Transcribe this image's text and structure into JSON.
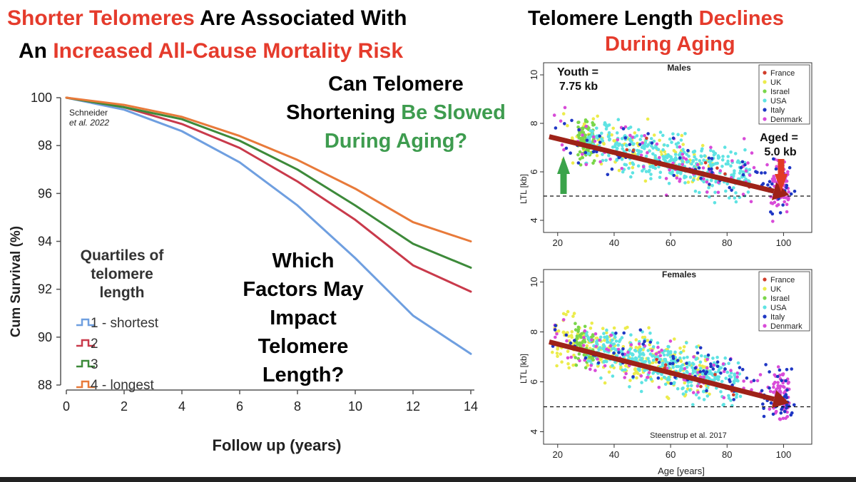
{
  "headline_left": {
    "part1": "Shorter Telomeres",
    "part2": " Are Associated With",
    "part3": "An ",
    "part4": "Increased All-Cause Mortality Risk"
  },
  "headline_right": {
    "part1": "Telomere Length ",
    "part2": "Declines",
    "part3": "During Aging"
  },
  "question1": {
    "line1": "Can Telomere",
    "line2a": "Shortening ",
    "line2b": "Be Slowed",
    "line3": "During Aging?"
  },
  "question2": {
    "line1": "Which",
    "line2": "Factors May",
    "line3": "Impact",
    "line4": "Telomere",
    "line5": "Length?"
  },
  "colors": {
    "red": "#e53b2c",
    "green": "#3e9c4f",
    "arrow": "#9e2218",
    "France": "#d13d2a",
    "UK": "#ecec4c",
    "Israel": "#7ad64a",
    "USA": "#5fe3e3",
    "Italy": "#1f37c4",
    "Denmark": "#d84bd8"
  },
  "chart_data": [
    {
      "type": "line",
      "xlabel": "Follow up (years)",
      "ylabel": "Cum Survival (%)",
      "xlim": [
        0,
        14
      ],
      "ylim": [
        88,
        100
      ],
      "xticks": [
        "0",
        "2",
        "4",
        "6",
        "8",
        "10",
        "12",
        "14"
      ],
      "yticks": [
        "100",
        "98",
        "96",
        "94",
        "92",
        "90",
        "88"
      ],
      "citation": {
        "line1": "Schneider",
        "line2": "et al. 2022"
      },
      "legend_title": {
        "line1": "Quartiles of",
        "line2": "telomere",
        "line3": "length"
      },
      "x": [
        0,
        2,
        4,
        6,
        8,
        10,
        12,
        14
      ],
      "series": [
        {
          "name": "1 - shortest",
          "color": "#6f9fe0",
          "values": [
            100,
            99.5,
            98.6,
            97.3,
            95.5,
            93.3,
            90.9,
            89.3
          ]
        },
        {
          "name": "2",
          "color": "#c93a4b",
          "values": [
            100,
            99.6,
            98.9,
            97.9,
            96.5,
            94.9,
            93.0,
            91.9
          ]
        },
        {
          "name": "3",
          "color": "#3d8a3a",
          "values": [
            100,
            99.6,
            99.1,
            98.2,
            97.0,
            95.5,
            93.9,
            92.9
          ]
        },
        {
          "name": "4 - longest",
          "color": "#e87a3a",
          "values": [
            100,
            99.7,
            99.2,
            98.4,
            97.4,
            96.2,
            94.8,
            94.0
          ]
        }
      ]
    },
    {
      "type": "scatter",
      "title": "Males",
      "ylabel": "LTL [kb]",
      "xlim": [
        15,
        110
      ],
      "ylim": [
        3.5,
        10.5
      ],
      "xticks": [
        "20",
        "40",
        "60",
        "80",
        "100"
      ],
      "yticks": [
        "4",
        "6",
        "8",
        "10"
      ],
      "reference_line_y": 5,
      "trend": {
        "x": [
          17,
          102
        ],
        "y": [
          7.45,
          5.05
        ]
      },
      "youth_label": {
        "line1": "Youth =",
        "line2": "7.75 kb"
      },
      "aged_label": {
        "line1": "Aged =",
        "line2": "5.0 kb"
      },
      "legend": [
        "France",
        "UK",
        "Israel",
        "USA",
        "Italy",
        "Denmark"
      ],
      "seed": 11
    },
    {
      "type": "scatter",
      "title": "Females",
      "xlabel": "Age [years]",
      "ylabel": "LTL [kb]",
      "xlim": [
        15,
        110
      ],
      "ylim": [
        3.5,
        10.5
      ],
      "xticks": [
        "20",
        "40",
        "60",
        "80",
        "100"
      ],
      "yticks": [
        "4",
        "6",
        "8",
        "10"
      ],
      "reference_line_y": 5,
      "trend": {
        "x": [
          17,
          102
        ],
        "y": [
          7.6,
          5.15
        ]
      },
      "citation": "Steenstrup et al. 2017",
      "legend": [
        "France",
        "UK",
        "Israel",
        "USA",
        "Italy",
        "Denmark"
      ],
      "seed": 29
    }
  ]
}
